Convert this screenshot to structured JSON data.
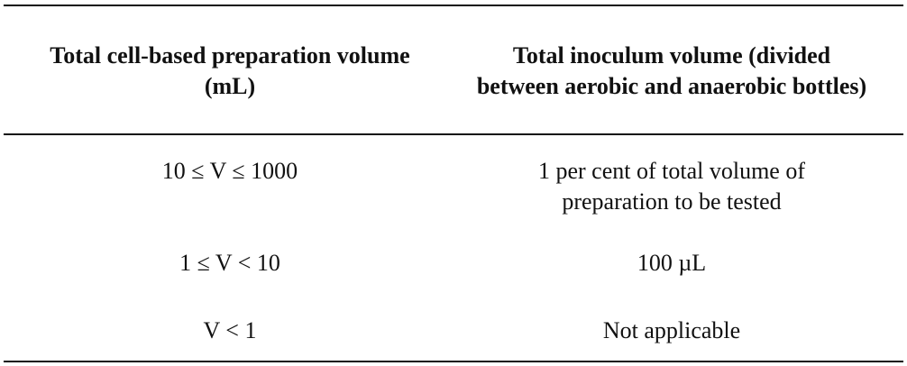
{
  "table": {
    "header": [
      "Total cell-based preparation volume (mL)",
      "Total inoculum volume (divided between aerobic and anaerobic bottles)"
    ],
    "rows": [
      [
        "10 ≤ V ≤ 1000",
        "1 per cent of total volume of preparation to be tested"
      ],
      [
        "1 ≤ V < 10",
        "100 µL"
      ],
      [
        "V < 1",
        "Not applicable"
      ]
    ]
  }
}
